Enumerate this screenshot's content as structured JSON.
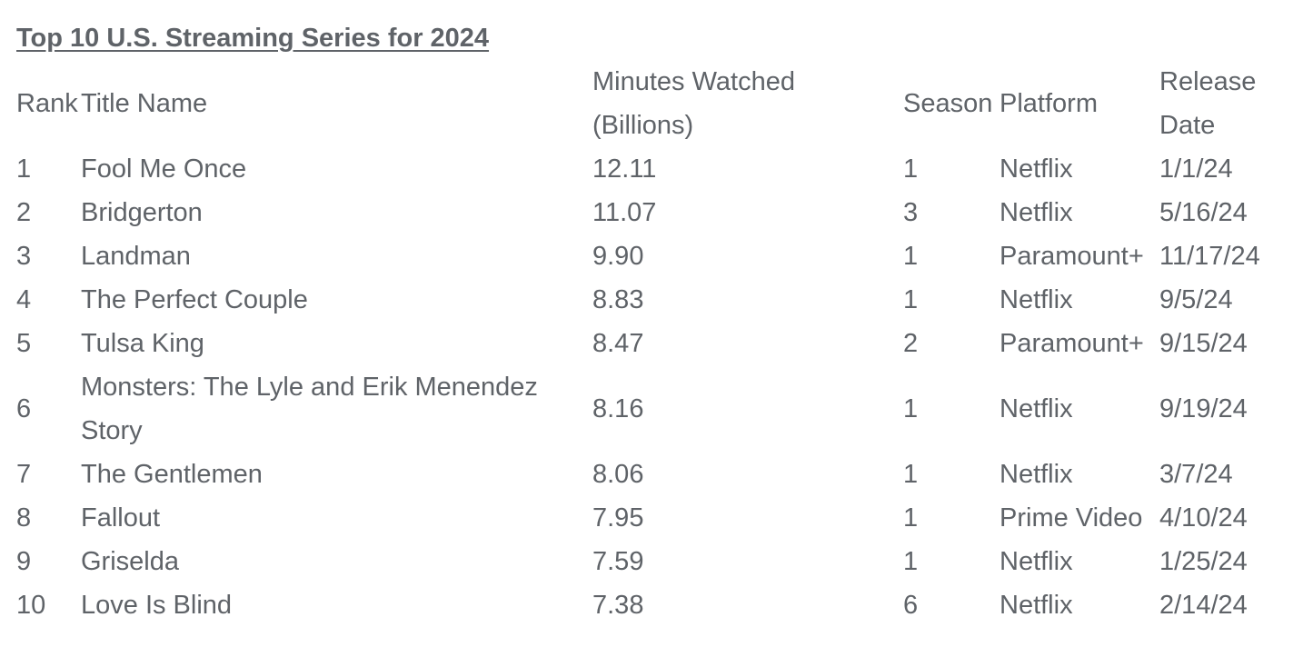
{
  "page": {
    "title": "Top 10 U.S. Streaming Series for 2024"
  },
  "table": {
    "headers": {
      "rank": "Rank",
      "title": "Title Name",
      "minutes_line1": "Minutes Watched",
      "minutes_line2": "(Billions)",
      "season": "Season",
      "platform": "Platform",
      "release_line1": "Release",
      "release_line2": "Date"
    },
    "rows": [
      {
        "rank": "1",
        "title": "Fool Me Once",
        "minutes": "12.11",
        "season": "1",
        "platform": "Netflix",
        "release": "1/1/24"
      },
      {
        "rank": "2",
        "title": "Bridgerton",
        "minutes": "11.07",
        "season": "3",
        "platform": "Netflix",
        "release": "5/16/24"
      },
      {
        "rank": "3",
        "title": "Landman",
        "minutes": "9.90",
        "season": "1",
        "platform": "Paramount+",
        "release": "11/17/24"
      },
      {
        "rank": "4",
        "title": "The Perfect Couple",
        "minutes": "8.83",
        "season": "1",
        "platform": "Netflix",
        "release": "9/5/24"
      },
      {
        "rank": "5",
        "title": "Tulsa King",
        "minutes": "8.47",
        "season": "2",
        "platform": "Paramount+",
        "release": "9/15/24"
      },
      {
        "rank": "6",
        "title": "Monsters: The Lyle and Erik Menendez Story",
        "minutes": "8.16",
        "season": "1",
        "platform": "Netflix",
        "release": "9/19/24"
      },
      {
        "rank": "7",
        "title": "The Gentlemen",
        "minutes": "8.06",
        "season": "1",
        "platform": "Netflix",
        "release": "3/7/24"
      },
      {
        "rank": "8",
        "title": "Fallout",
        "minutes": "7.95",
        "season": "1",
        "platform": "Prime Video",
        "release": "4/10/24"
      },
      {
        "rank": "9",
        "title": "Griselda",
        "minutes": "7.59",
        "season": "1",
        "platform": "Netflix",
        "release": "1/25/24"
      },
      {
        "rank": "10",
        "title": "Love Is Blind",
        "minutes": "7.38",
        "season": "6",
        "platform": "Netflix",
        "release": "2/14/24"
      }
    ]
  }
}
